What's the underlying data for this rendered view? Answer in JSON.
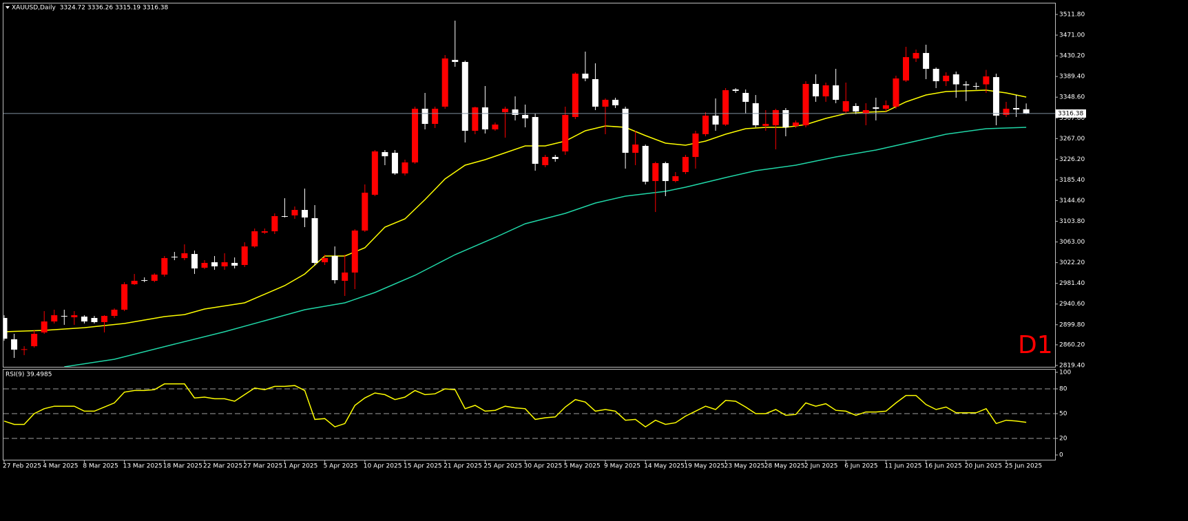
{
  "chart_data": [
    {
      "type": "candlestick",
      "title": "XAUUSD,Daily",
      "subtitle": "3324.72 3336.26 3315.19 3316.38",
      "annotation": "D1",
      "categories": [
        "27 Feb 2025",
        null,
        null,
        null,
        "4 Mar 2025",
        null,
        null,
        null,
        "8 Mar 2025",
        null,
        null,
        null,
        "13 Mar 2025",
        null,
        null,
        null,
        "18 Mar 2025",
        null,
        null,
        null,
        "22 Mar 2025",
        null,
        null,
        null,
        "27 Mar 2025",
        null,
        null,
        null,
        "1 Apr 2025",
        null,
        null,
        null,
        "5 Apr 2025",
        null,
        null,
        null,
        "10 Apr 2025",
        null,
        null,
        null,
        "15 Apr 2025",
        null,
        null,
        null,
        "21 Apr 2025",
        null,
        null,
        null,
        "25 Apr 2025",
        null,
        null,
        null,
        "30 Apr 2025",
        null,
        null,
        null,
        "5 May 2025",
        null,
        null,
        null,
        "9 May 2025",
        null,
        null,
        null,
        "14 May 2025",
        null,
        null,
        null,
        "19 May 2025",
        null,
        null,
        null,
        "23 May 2025",
        null,
        null,
        null,
        "28 May 2025",
        null,
        null,
        null,
        "2 Jun 2025",
        null,
        null,
        null,
        "6 Jun 2025",
        null,
        null,
        null,
        "11 Jun 2025",
        null,
        null,
        null,
        "16 Jun 2025",
        null,
        null,
        null,
        "20 Jun 2025",
        null,
        null,
        null,
        "25 Jun 2025",
        null,
        null
      ],
      "open": [
        2913.1,
        2871.0,
        2850.6,
        2857.4,
        2884.5,
        2906.2,
        2917.2,
        2914.5,
        2915.8,
        2913.1,
        2904.9,
        2917.2,
        2929.4,
        2979.6,
        2987.7,
        2986.4,
        2998.6,
        3033.9,
        3031.2,
        3039.3,
        3012.2,
        3023.0,
        3014.9,
        3021.7,
        3017.6,
        3054.2,
        3081.4,
        3084.1,
        3114.0,
        3115.4,
        3126.2,
        3110.0,
        3023.0,
        3035.3,
        2986.4,
        3002.7,
        3085.5,
        3156.1,
        3240.3,
        3238.9,
        3198.2,
        3219.9,
        3325.8,
        3295.9,
        3329.9,
        3422.2,
        3418.1,
        3282.3,
        3328.5,
        3285.1,
        3319.0,
        3324.4,
        3313.6,
        3309.5,
        3214.5,
        3230.7,
        3241.6,
        3309.5,
        3395.0,
        3384.2,
        3329.9,
        3343.4,
        3325.8,
        3238.9,
        3252.5,
        3183.2,
        3218.5,
        3183.2,
        3200.9,
        3230.7,
        3275.6,
        3312.2,
        3294.6,
        3363.8,
        3357.0,
        3336.7,
        3291.9,
        3293.2,
        3323.1,
        3291.9,
        3293.2,
        3374.7,
        3350.2,
        3371.9,
        3320.4,
        3331.2,
        3316.3,
        3328.5,
        3325.8,
        3329.9,
        3381.5,
        3425.0,
        3435.8,
        3404.5,
        3380.1,
        3393.6,
        3373.9,
        3370.6,
        3373.9,
        3388.2,
        3313.6,
        3327.2,
        3324.72
      ],
      "high": [
        2918.5,
        2881.8,
        2857.4,
        2888.6,
        2926.6,
        2929.4,
        2929.4,
        2926.6,
        2918.5,
        2917.2,
        2918.5,
        2932.1,
        2983.7,
        2999.9,
        2993.2,
        3001.3,
        3035.3,
        3043.4,
        3058.3,
        3046.1,
        3027.1,
        3035.3,
        3040.7,
        3032.5,
        3062.4,
        3089.6,
        3089.6,
        3119.4,
        3149.3,
        3133.0,
        3168.3,
        3135.7,
        3038.0,
        3054.2,
        3038.0,
        3088.2,
        3176.5,
        3244.3,
        3244.3,
        3244.3,
        3225.3,
        3329.9,
        3357.0,
        3329.9,
        3431.7,
        3499.6,
        3420.8,
        3329.9,
        3370.6,
        3298.6,
        3329.9,
        3350.2,
        3334.0,
        3316.3,
        3234.8,
        3234.8,
        3329.9,
        3397.7,
        3438.5,
        3415.4,
        3346.1,
        3347.5,
        3329.9,
        3282.3,
        3255.2,
        3221.3,
        3221.3,
        3200.9,
        3234.8,
        3282.3,
        3319.0,
        3346.1,
        3366.5,
        3366.5,
        3363.8,
        3352.9,
        3323.1,
        3325.8,
        3327.2,
        3302.7,
        3380.1,
        3393.6,
        3377.4,
        3404.5,
        3377.4,
        3336.7,
        3336.7,
        3347.5,
        3342.1,
        3391.0,
        3448.0,
        3442.5,
        3452.1,
        3407.2,
        3397.7,
        3399.1,
        3380.1,
        3377.4,
        3402.4,
        3395.0,
        3339.4,
        3352.9,
        3336.26
      ],
      "low": [
        2868.3,
        2834.3,
        2839.7,
        2854.7,
        2881.8,
        2902.2,
        2899.5,
        2899.5,
        2902.2,
        2902.2,
        2884.5,
        2913.1,
        2926.6,
        2978.2,
        2983.7,
        2983.7,
        2994.5,
        3027.1,
        3027.1,
        2999.9,
        3009.5,
        3008.1,
        3008.1,
        3010.8,
        3013.5,
        3051.5,
        3078.7,
        3078.7,
        3111.3,
        3108.6,
        3092.3,
        3016.3,
        3017.6,
        2981.0,
        2956.5,
        2970.1,
        3082.8,
        3153.4,
        3214.5,
        3195.5,
        3194.1,
        3217.2,
        3285.1,
        3287.8,
        3325.8,
        3408.6,
        3259.3,
        3275.6,
        3276.9,
        3282.3,
        3268.8,
        3302.7,
        3289.1,
        3203.6,
        3210.4,
        3221.3,
        3234.8,
        3305.4,
        3380.1,
        3323.1,
        3275.6,
        3327.2,
        3207.7,
        3214.5,
        3176.5,
        3122.1,
        3153.4,
        3180.5,
        3196.8,
        3207.7,
        3271.5,
        3282.3,
        3291.9,
        3357.0,
        3316.3,
        3289.1,
        3282.3,
        3245.7,
        3271.5,
        3287.8,
        3289.1,
        3339.4,
        3339.4,
        3336.7,
        3316.3,
        3314.9,
        3293.2,
        3302.7,
        3320.4,
        3325.8,
        3378.7,
        3418.1,
        3384.2,
        3366.5,
        3370.6,
        3347.5,
        3340.7,
        3363.8,
        3357.0,
        3293.2,
        3309.5,
        3309.5,
        3315.19
      ],
      "close": [
        2872.3,
        2850.6,
        2851.5,
        2881.8,
        2906.2,
        2918.5,
        2916.5,
        2918.5,
        2906.2,
        2904.9,
        2917.2,
        2929.4,
        2979.6,
        2986.4,
        2987.0,
        2998.6,
        3031.2,
        3033.2,
        3040.7,
        3010.8,
        3021.7,
        3014.9,
        3023.0,
        3016.3,
        3054.2,
        3084.1,
        3084.1,
        3114.0,
        3113.5,
        3126.2,
        3111.3,
        3021.7,
        3031.2,
        2987.7,
        3002.7,
        3085.5,
        3160.2,
        3241.6,
        3232.1,
        3198.2,
        3219.9,
        3325.8,
        3295.9,
        3325.8,
        3425.0,
        3418.1,
        3282.3,
        3328.5,
        3285.1,
        3294.6,
        3325.8,
        3313.6,
        3306.8,
        3217.2,
        3230.7,
        3226.7,
        3313.6,
        3395.0,
        3385.5,
        3329.9,
        3343.4,
        3332.6,
        3238.9,
        3255.2,
        3181.9,
        3218.5,
        3183.2,
        3192.7,
        3230.7,
        3276.9,
        3312.2,
        3294.6,
        3362.4,
        3361.1,
        3339.4,
        3293.2,
        3295.9,
        3323.1,
        3289.1,
        3298.6,
        3374.7,
        3350.2,
        3371.9,
        3343.4,
        3340.7,
        3320.4,
        3323.1,
        3325.8,
        3332.6,
        3385.5,
        3427.6,
        3435.8,
        3404.5,
        3380.1,
        3391.0,
        3373.9,
        3371.9,
        3370.0,
        3389.6,
        3312.2,
        3325.8,
        3324.4,
        3316.38
      ],
      "up_color": "#ff0000",
      "down_color": "#ffffff",
      "series": [
        {
          "color": "#ffff00",
          "x": [
            0,
            4,
            8,
            12,
            16,
            18,
            20,
            24,
            28,
            30,
            32,
            34,
            36,
            38,
            40,
            42,
            44,
            46,
            48,
            50,
            52,
            54,
            56,
            58,
            60,
            62,
            64,
            66,
            68,
            70,
            72,
            74,
            76,
            78,
            80,
            82,
            84,
            86,
            88,
            90,
            92,
            94,
            96,
            98,
            100,
            102
          ],
          "values": [
            2885.9,
            2888.6,
            2894.0,
            2902.2,
            2915.8,
            2919.8,
            2930.7,
            2942.9,
            2976.9,
            2999.9,
            3035.3,
            3035.3,
            3051.5,
            3092.3,
            3108.6,
            3146.6,
            3187.3,
            3214.5,
            3225.3,
            3238.9,
            3252.5,
            3252.5,
            3262.0,
            3282.3,
            3291.9,
            3289.1,
            3272.8,
            3257.9,
            3253.8,
            3262.0,
            3275.6,
            3286.4,
            3289.1,
            3289.1,
            3294.6,
            3306.8,
            3316.3,
            3319.0,
            3320.4,
            3339.4,
            3352.9,
            3359.7,
            3361.1,
            3362.4,
            3357.0,
            3348.9
          ]
        },
        {
          "color": "#20d8a8",
          "x": [
            6,
            11,
            17,
            22,
            27,
            30,
            34,
            37,
            41,
            45,
            49,
            52,
            56,
            59,
            62,
            66,
            68,
            72,
            75,
            79,
            83,
            87,
            91,
            94,
            98,
            102
          ],
          "values": [
            2816.7,
            2831.6,
            2861.5,
            2885.9,
            2913.1,
            2929.4,
            2942.9,
            2963.3,
            2997.2,
            3038.0,
            3071.9,
            3099.0,
            3119.4,
            3139.8,
            3153.4,
            3162.9,
            3171.0,
            3190.0,
            3203.6,
            3214.5,
            3230.7,
            3244.3,
            3262.0,
            3275.6,
            3286.4,
            3289.1
          ]
        }
      ],
      "price_line": {
        "value": 3316.38,
        "label": "3316.38"
      },
      "ylim": [
        2816.7,
        3533.5
      ],
      "yticks": [
        {
          "value": 3511.8,
          "label": "3511.80"
        },
        {
          "value": 3471.0,
          "label": "3471.00"
        },
        {
          "value": 3430.2,
          "label": "3430.20"
        },
        {
          "value": 3389.4,
          "label": "3389.40"
        },
        {
          "value": 3348.6,
          "label": "3348.60"
        },
        {
          "value": 3307.8,
          "label": "3307.80"
        },
        {
          "value": 3267.0,
          "label": "3267.00"
        },
        {
          "value": 3226.2,
          "label": "3226.20"
        },
        {
          "value": 3185.4,
          "label": "3185.40"
        },
        {
          "value": 3144.6,
          "label": "3144.60"
        },
        {
          "value": 3103.8,
          "label": "3103.80"
        },
        {
          "value": 3063.0,
          "label": "3063.00"
        },
        {
          "value": 3022.2,
          "label": "3022.20"
        },
        {
          "value": 2981.4,
          "label": "2981.40"
        },
        {
          "value": 2940.6,
          "label": "2940.60"
        },
        {
          "value": 2899.8,
          "label": "2899.80"
        },
        {
          "value": 2860.2,
          "label": "2860.20"
        },
        {
          "value": 2819.4,
          "label": "2819.40"
        }
      ],
      "grid": false
    },
    {
      "type": "line",
      "title": "RSI(9) 39.4985",
      "color": "#ffff00",
      "values": [
        41,
        37,
        37,
        50,
        56,
        59,
        59,
        59,
        53,
        53,
        58,
        63,
        76,
        78,
        78,
        79,
        86,
        86,
        86,
        69,
        70,
        68,
        68,
        65,
        73,
        81,
        79,
        83,
        83,
        84,
        78,
        43,
        44,
        34,
        38,
        60,
        69,
        75,
        73,
        67,
        70,
        78,
        73,
        74,
        80,
        79,
        56,
        60,
        53,
        54,
        59,
        57,
        56,
        43,
        45,
        46,
        58,
        67,
        64,
        53,
        55,
        53,
        42,
        43,
        34,
        42,
        37,
        39,
        47,
        53,
        59,
        55,
        66,
        65,
        58,
        50,
        50,
        55,
        48,
        49,
        63,
        59,
        62,
        54,
        53,
        48,
        52,
        52,
        53,
        63,
        72,
        72,
        61,
        55,
        58,
        51,
        51,
        51,
        56,
        38,
        42,
        41,
        39.4985
      ],
      "ylim": [
        -5.8,
        103.3
      ],
      "yticks": [
        0,
        20,
        50,
        80,
        100
      ],
      "levels": [
        20,
        50,
        80
      ]
    }
  ]
}
